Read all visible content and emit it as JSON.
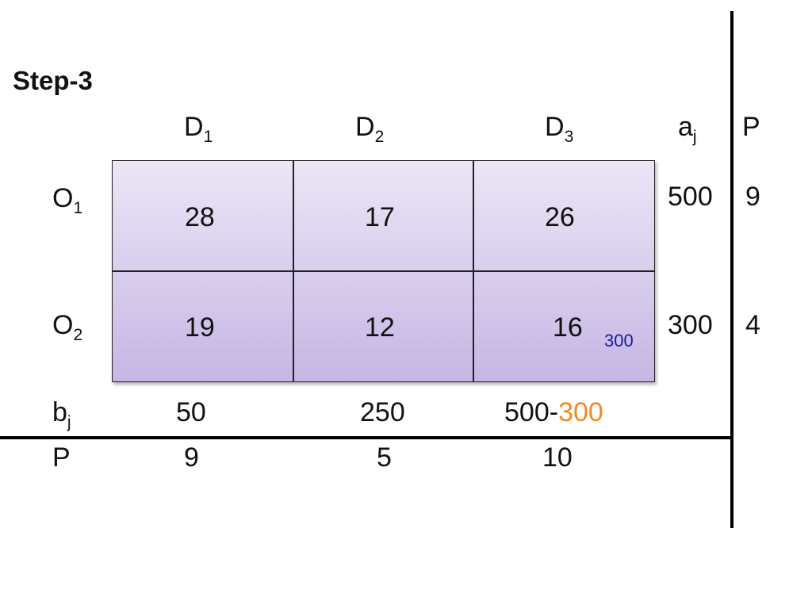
{
  "title": "Step-3",
  "column_headers": [
    {
      "main": "D",
      "sub": "1"
    },
    {
      "main": "D",
      "sub": "2"
    },
    {
      "main": "D",
      "sub": "3"
    },
    {
      "main": "a",
      "sub": "j"
    },
    {
      "main": "P"
    }
  ],
  "rows": [
    {
      "label": {
        "main": "O",
        "sub": "1"
      },
      "cells": [
        {
          "cost": 28
        },
        {
          "cost": 17
        },
        {
          "cost": 26
        }
      ],
      "supply": 500,
      "penalty": 9
    },
    {
      "label": {
        "main": "O",
        "sub": "2"
      },
      "cells": [
        {
          "cost": 19
        },
        {
          "cost": 12
        },
        {
          "cost": 16,
          "allocation": 300
        }
      ],
      "supply": 300,
      "penalty": 4
    }
  ],
  "demand_row": {
    "label": {
      "main": "b",
      "sub": "j"
    },
    "values": [
      {
        "text": "50"
      },
      {
        "text": "250"
      },
      {
        "text": "500-",
        "change": "300"
      }
    ]
  },
  "penalty_row": {
    "label": "P",
    "values": [
      9,
      5,
      10
    ]
  }
}
